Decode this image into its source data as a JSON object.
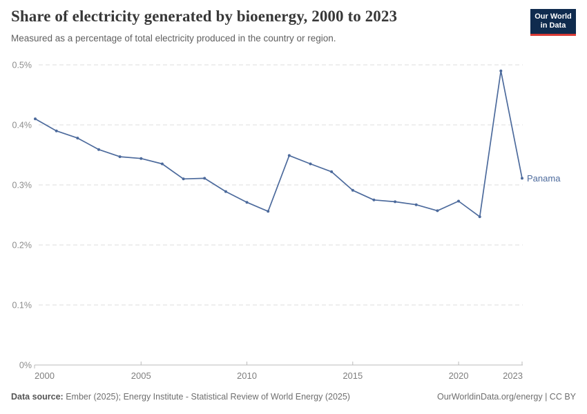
{
  "header": {
    "title": "Share of electricity generated by bioenergy, 2000 to 2023",
    "subtitle": "Measured as a percentage of total electricity produced in the country or region.",
    "logo": {
      "line1": "Our World",
      "line2": "in Data"
    }
  },
  "chart_data": {
    "type": "line",
    "title": "Share of electricity generated by bioenergy, 2000 to 2023",
    "x": [
      2000,
      2001,
      2002,
      2003,
      2004,
      2005,
      2006,
      2007,
      2008,
      2009,
      2010,
      2011,
      2012,
      2013,
      2014,
      2015,
      2016,
      2017,
      2018,
      2019,
      2020,
      2021,
      2022,
      2023
    ],
    "series": [
      {
        "name": "Panama",
        "color": "#4C6A9C",
        "values": [
          0.41,
          0.39,
          0.378,
          0.359,
          0.347,
          0.344,
          0.335,
          0.31,
          0.311,
          0.289,
          0.271,
          0.256,
          0.349,
          0.335,
          0.322,
          0.291,
          0.275,
          0.272,
          0.267,
          0.257,
          0.273,
          0.247,
          0.49,
          0.311
        ]
      }
    ],
    "unit": "%",
    "xlabel": "",
    "ylabel": "",
    "ylim": [
      0,
      0.5
    ],
    "yticks": [
      0,
      0.1,
      0.2,
      0.3,
      0.4,
      0.5
    ],
    "ytick_labels": [
      "0%",
      "0.1%",
      "0.2%",
      "0.3%",
      "0.4%",
      "0.5%"
    ],
    "xticks": [
      2000,
      2005,
      2010,
      2015,
      2020,
      2023
    ],
    "grid": "horizontal-dashed",
    "legend_position": "end-of-line-label",
    "colors": {
      "gridline": "#dcdcdc",
      "axis": "#bbbbbb",
      "ytick_label": "#8c8c8c",
      "xtick_label": "#7e7e7e"
    }
  },
  "footer": {
    "datasource_label": "Data source:",
    "datasource_text": "Ember (2025); Energy Institute - Statistical Review of World Energy (2025)",
    "right_text": "OurWorldinData.org/energy | CC BY"
  }
}
